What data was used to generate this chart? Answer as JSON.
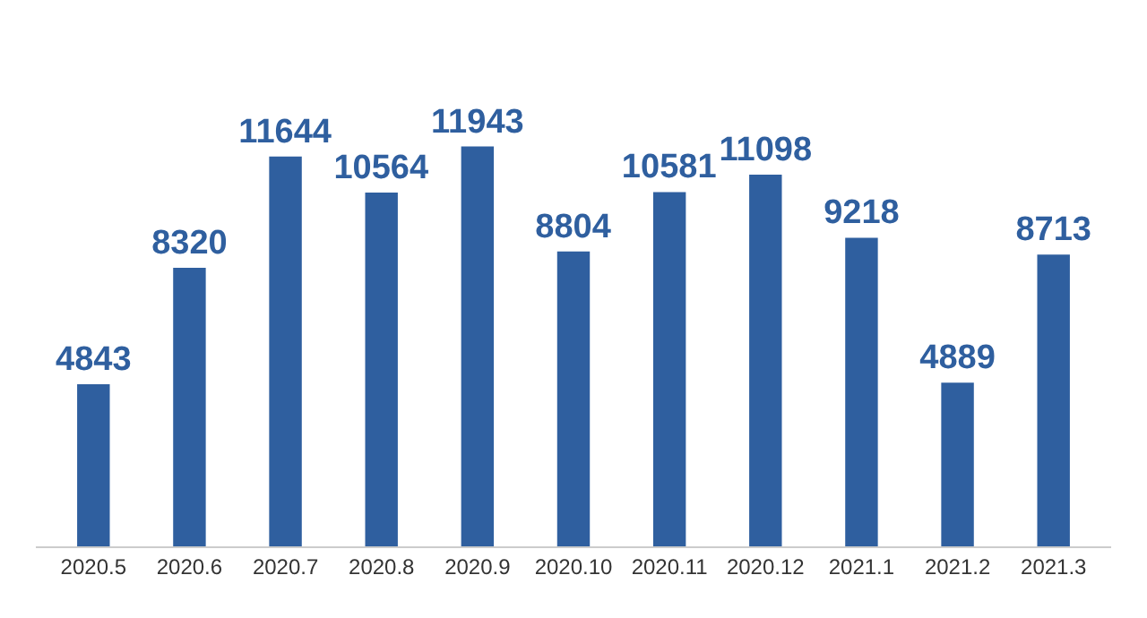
{
  "chart_data": {
    "type": "bar",
    "categories": [
      "2020.5",
      "2020.6",
      "2020.7",
      "2020.8",
      "2020.9",
      "2020.10",
      "2020.11",
      "2020.12",
      "2021.1",
      "2021.2",
      "2021.3"
    ],
    "values": [
      4843,
      8320,
      11644,
      10564,
      11943,
      8804,
      10581,
      11098,
      9218,
      4889,
      8713
    ],
    "color": "#2f5f9f",
    "data_labels": true,
    "grid": false,
    "legend": false
  }
}
